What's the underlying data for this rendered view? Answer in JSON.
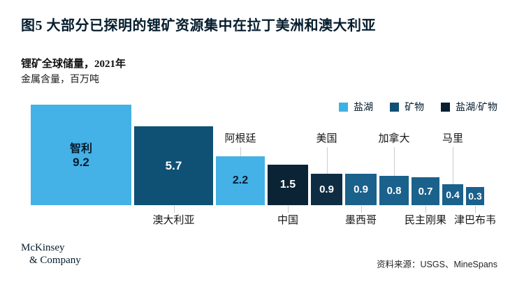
{
  "title": "图5 大部分已探明的锂矿资源集中在拉丁美洲和澳大利亚",
  "subtitle": "锂矿全球储量，2021年",
  "unit_label": "金属含量，百万吨",
  "legend": {
    "items": [
      {
        "label": "盐湖",
        "color": "#3FB0E3"
      },
      {
        "label": "矿物",
        "color": "#0F5174"
      },
      {
        "label": "盐湖/矿物",
        "color": "#0A1F30"
      }
    ]
  },
  "chart_data": {
    "type": "bar",
    "title": "锂矿全球储量，2021年",
    "ylabel": "金属含量，百万吨",
    "style": "area-proportional-squares",
    "legend_position": "top-right",
    "grid": false,
    "categories": [
      "智利",
      "澳大利亚",
      "阿根廷",
      "中国",
      "美国",
      "墨西哥",
      "加拿大",
      "民主刚果",
      "马里",
      "津巴布韦"
    ],
    "values": [
      9.2,
      5.7,
      2.2,
      1.5,
      0.9,
      0.9,
      0.8,
      0.7,
      0.4,
      0.3
    ],
    "countries": [
      {
        "id": "chile",
        "name": "智利",
        "value": 9.2,
        "type": "盐湖",
        "color": "#44B1E7",
        "value_text_color": "#051C2C",
        "label_position": "inside"
      },
      {
        "id": "australia",
        "name": "澳大利亚",
        "value": 5.7,
        "type": "矿物",
        "color": "#0E5174",
        "value_text_color": "#FFFFFF",
        "label_position": "below"
      },
      {
        "id": "argentina",
        "name": "阿根廷",
        "value": 2.2,
        "type": "盐湖",
        "color": "#44B1E7",
        "value_text_color": "#051C2C",
        "label_position": "above"
      },
      {
        "id": "china",
        "name": "中国",
        "value": 1.5,
        "type": "盐湖/矿物",
        "color": "#0A2335",
        "value_text_color": "#FFFFFF",
        "label_position": "below"
      },
      {
        "id": "usa",
        "name": "美国",
        "value": 0.9,
        "type": "盐湖/矿物",
        "color": "#0F2D42",
        "value_text_color": "#FFFFFF",
        "label_position": "above"
      },
      {
        "id": "mexico",
        "name": "墨西哥",
        "value": 0.9,
        "type": "矿物",
        "color": "#1A618C",
        "value_text_color": "#FFFFFF",
        "label_position": "below"
      },
      {
        "id": "canada",
        "name": "加拿大",
        "value": 0.8,
        "type": "矿物",
        "color": "#1A618C",
        "value_text_color": "#FFFFFF",
        "label_position": "above"
      },
      {
        "id": "drc",
        "name": "民主刚果",
        "value": 0.7,
        "type": "矿物",
        "color": "#1A618C",
        "value_text_color": "#FFFFFF",
        "label_position": "below"
      },
      {
        "id": "mali",
        "name": "马里",
        "value": 0.4,
        "type": "矿物",
        "color": "#1A618C",
        "value_text_color": "#FFFFFF",
        "label_position": "above"
      },
      {
        "id": "zimbabwe",
        "name": "津巴布韦",
        "value": 0.3,
        "type": "矿物",
        "color": "#1A618C",
        "value_text_color": "#FFFFFF",
        "label_position": "below"
      }
    ]
  },
  "footer": {
    "logo_line1": "McKinsey",
    "logo_line2": "& Company",
    "source": "资料来源：USGS、MineSpans"
  }
}
